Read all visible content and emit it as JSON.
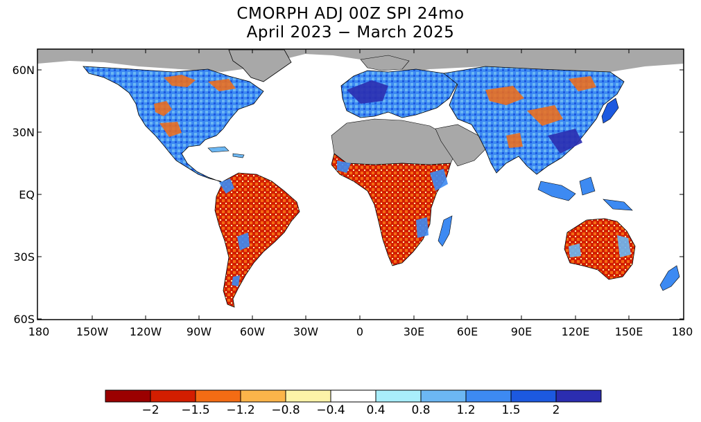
{
  "title_line1": "CMORPH ADJ 00Z SPI 24mo",
  "title_line2": "April 2023 - March 2025",
  "y_axis_labels": [
    "60N",
    "30N",
    "EQ",
    "30S",
    "60S"
  ],
  "x_axis_labels": [
    "180",
    "150W",
    "120W",
    "90W",
    "60W",
    "30W",
    "0",
    "30E",
    "60E",
    "90E",
    "120E",
    "150E",
    "180"
  ],
  "colorbar": {
    "labels": [
      "-2",
      "-1.5",
      "-1.2",
      "-0.8",
      "-0.4",
      "0.4",
      "0.8",
      "1.2",
      "1.5",
      "2"
    ],
    "colors": [
      "#9b0000",
      "#d31e00",
      "#f36c14",
      "#fbb44a",
      "#fdf3a8",
      "#ffffff",
      "#a9eefb",
      "#6cb7f3",
      "#3d8af2",
      "#1c59e0",
      "#2b2db0"
    ]
  },
  "colors": {
    "land_nodata": "#a8a8a8",
    "ocean": "#ffffff",
    "border": "#000000"
  }
}
